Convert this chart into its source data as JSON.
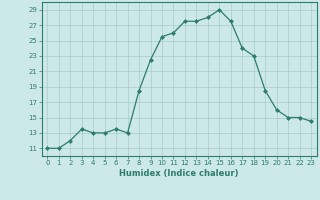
{
  "x": [
    0,
    1,
    2,
    3,
    4,
    5,
    6,
    7,
    8,
    9,
    10,
    11,
    12,
    13,
    14,
    15,
    16,
    17,
    18,
    19,
    20,
    21,
    22,
    23
  ],
  "y": [
    11,
    11,
    12,
    13.5,
    13,
    13,
    13.5,
    13,
    18.5,
    22.5,
    25.5,
    26,
    27.5,
    27.5,
    28,
    29,
    27.5,
    24,
    23,
    18.5,
    16,
    15,
    15,
    14.5
  ],
  "title": "",
  "xlabel": "Humidex (Indice chaleur)",
  "ylabel": "",
  "line_color": "#2e7d6b",
  "marker": "D",
  "marker_size": 2.0,
  "bg_color": "#cce8e8",
  "grid_color": "#aacccc",
  "xlim": [
    -0.5,
    23.5
  ],
  "ylim": [
    10,
    30
  ],
  "yticks": [
    11,
    13,
    15,
    17,
    19,
    21,
    23,
    25,
    27,
    29
  ],
  "xticks": [
    0,
    1,
    2,
    3,
    4,
    5,
    6,
    7,
    8,
    9,
    10,
    11,
    12,
    13,
    14,
    15,
    16,
    17,
    18,
    19,
    20,
    21,
    22,
    23
  ],
  "tick_color": "#2e7d6b",
  "label_color": "#2e7d6b"
}
